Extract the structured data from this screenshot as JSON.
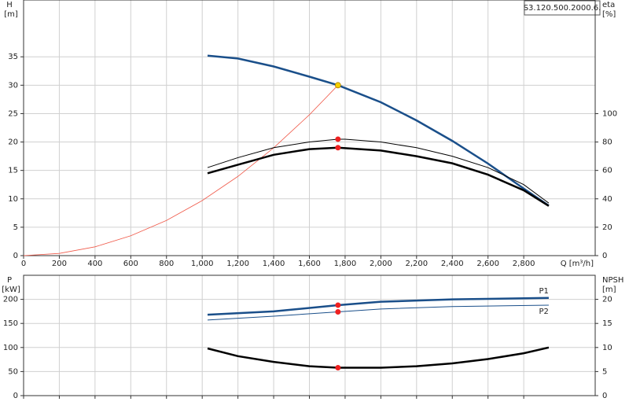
{
  "label": "S3.120.500.2000.6.",
  "chart_data": [
    {
      "type": "line",
      "y_label": "H",
      "y_unit": "[m]",
      "y2_label": "eta",
      "y2_unit": "[%]",
      "x_label": "Q [m³/h]",
      "xlim": [
        0,
        3200
      ],
      "xticks": [
        0,
        200,
        400,
        600,
        800,
        {
          "value": 1000,
          "label": "1,000"
        },
        {
          "value": 1200,
          "label": "1,200"
        },
        {
          "value": 1400,
          "label": "1,400"
        },
        {
          "value": 1600,
          "label": "1,600"
        },
        {
          "value": 1800,
          "label": "1,800"
        },
        {
          "value": 2000,
          "label": "2,000"
        },
        {
          "value": 2200,
          "label": "2,200"
        },
        {
          "value": 2400,
          "label": "2,400"
        },
        {
          "value": 2600,
          "label": "2,600"
        },
        {
          "value": 2800,
          "label": "2,800"
        }
      ],
      "ylim": [
        0,
        45
      ],
      "yticks": [
        0,
        5,
        10,
        15,
        20,
        25,
        30,
        35
      ],
      "y2lim": [
        0,
        180
      ],
      "y2ticks": [
        0,
        20,
        40,
        60,
        80,
        100
      ],
      "grid": true,
      "xtick_labels": true,
      "series": [
        {
          "color": "#f05a4a",
          "width": 0.8,
          "axis": "y",
          "x": [
            0,
            200,
            400,
            600,
            800,
            1000,
            1200,
            1400,
            1600,
            1760
          ],
          "values": [
            0,
            0.39,
            1.55,
            3.49,
            6.2,
            9.69,
            13.95,
            18.98,
            24.79,
            30
          ]
        },
        {
          "color": "#1a4f8a",
          "width": 2.5,
          "axis": "y",
          "x": [
            1030,
            1200,
            1400,
            1600,
            1760,
            2000,
            2200,
            2400,
            2600,
            2800,
            2940
          ],
          "values": [
            35.2,
            34.7,
            33.3,
            31.5,
            30,
            27,
            23.8,
            20.2,
            16.2,
            11.8,
            8.8
          ]
        },
        {
          "color": "#000000",
          "width": 1,
          "axis": "y2",
          "x": [
            1030,
            1200,
            1400,
            1600,
            1760,
            1800,
            2000,
            2200,
            2400,
            2600,
            2800,
            2940
          ],
          "values": [
            62,
            69,
            76,
            80,
            82,
            82,
            80,
            76,
            70,
            62,
            50,
            37
          ]
        },
        {
          "color": "#000000",
          "width": 2.5,
          "axis": "y2",
          "x": [
            1030,
            1200,
            1400,
            1600,
            1760,
            2000,
            2200,
            2400,
            2600,
            2800,
            2940
          ],
          "values": [
            58,
            64,
            71,
            75,
            76,
            74,
            70,
            65,
            57,
            46,
            35
          ]
        }
      ],
      "points": [
        {
          "x": 1760,
          "y": 30,
          "axis": "y",
          "color": "#f5d000"
        },
        {
          "x": 1760,
          "y": 82,
          "axis": "y2",
          "color": "#ee2020"
        },
        {
          "x": 1760,
          "y": 76,
          "axis": "y2",
          "color": "#ee2020"
        }
      ]
    },
    {
      "type": "line",
      "y_label": "P",
      "y_unit": "[kW]",
      "y2_label": "NPSH",
      "y2_unit": "[m]",
      "xlim": [
        0,
        3200
      ],
      "xticks": [
        0,
        200,
        400,
        600,
        800,
        1000,
        1200,
        1400,
        1600,
        1800,
        2000,
        2200,
        2400,
        2600,
        2800
      ],
      "ylim": [
        0,
        250
      ],
      "yticks": [
        0,
        50,
        100,
        150,
        200
      ],
      "y2lim": [
        0,
        25
      ],
      "y2ticks": [
        0,
        5,
        10,
        15,
        20
      ],
      "grid": true,
      "xtick_labels": false,
      "series": [
        {
          "name": "P1",
          "color": "#1a4f8a",
          "width": 2.5,
          "axis": "y",
          "x": [
            1030,
            1400,
            1760,
            2000,
            2400,
            2940
          ],
          "values": [
            168,
            175,
            188,
            195,
            200,
            203
          ]
        },
        {
          "name": "P2",
          "color": "#1a4f8a",
          "width": 1,
          "axis": "y",
          "x": [
            1030,
            1400,
            1760,
            2000,
            2400,
            2940
          ],
          "values": [
            157,
            165,
            174,
            180,
            185,
            188
          ]
        },
        {
          "color": "#000000",
          "width": 2.5,
          "axis": "y2",
          "x": [
            1030,
            1200,
            1400,
            1600,
            1760,
            2000,
            2200,
            2400,
            2600,
            2800,
            2940
          ],
          "values": [
            9.8,
            8.2,
            7,
            6.1,
            5.8,
            5.8,
            6.1,
            6.7,
            7.6,
            8.8,
            10
          ]
        }
      ],
      "points": [
        {
          "x": 1760,
          "y": 188,
          "axis": "y",
          "color": "#ee2020"
        },
        {
          "x": 1760,
          "y": 174,
          "axis": "y",
          "color": "#ee2020"
        },
        {
          "x": 1760,
          "y": 5.8,
          "axis": "y2",
          "color": "#ee2020"
        }
      ]
    }
  ]
}
